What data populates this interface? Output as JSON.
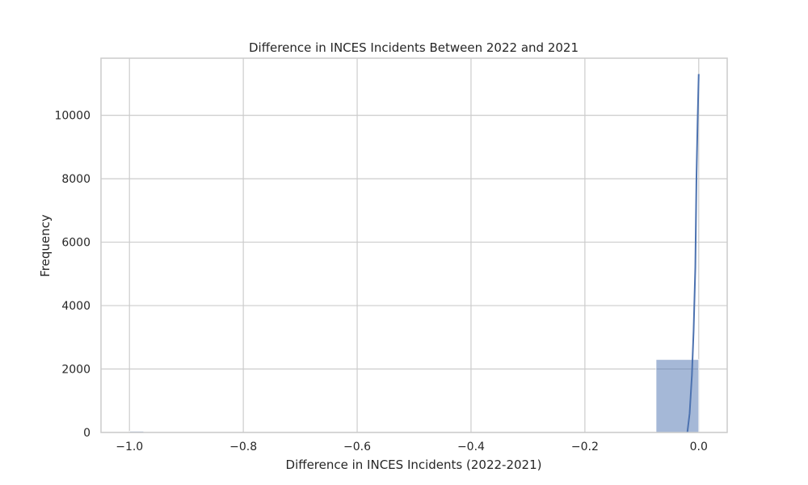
{
  "chart_data": {
    "type": "bar",
    "title": "Difference in INCES Incidents Between 2022 and 2021",
    "xlabel": "Difference in INCES Incidents (2022-2021)",
    "ylabel": "Frequency",
    "xlim": [
      -1.05,
      0.05
    ],
    "ylim": [
      0,
      11800
    ],
    "grid": true,
    "x_ticks": [
      -1.0,
      -0.8,
      -0.6,
      -0.4,
      -0.2,
      0.0
    ],
    "x_tick_labels": [
      "−1.0",
      "−0.8",
      "−0.6",
      "−0.4",
      "−0.2",
      "0.0"
    ],
    "y_ticks": [
      0,
      2000,
      4000,
      6000,
      8000,
      10000
    ],
    "y_tick_labels": [
      "0",
      "2000",
      "4000",
      "6000",
      "8000",
      "10000"
    ],
    "bins": [
      {
        "x0": -1.0,
        "x1": -0.975,
        "value": 40
      },
      {
        "x0": -0.075,
        "x1": 0.0,
        "value": 2300
      }
    ],
    "kde": {
      "x": [
        -0.02,
        -0.016,
        -0.012,
        -0.009,
        -0.006,
        -0.004,
        -0.002,
        0.0
      ],
      "y": [
        0,
        600,
        1800,
        3200,
        5200,
        8000,
        9800,
        11300
      ]
    },
    "colors": {
      "bar": "#4c72b0",
      "line": "#4c72b0",
      "grid": "#cccccc",
      "frame": "#cccccc"
    }
  }
}
